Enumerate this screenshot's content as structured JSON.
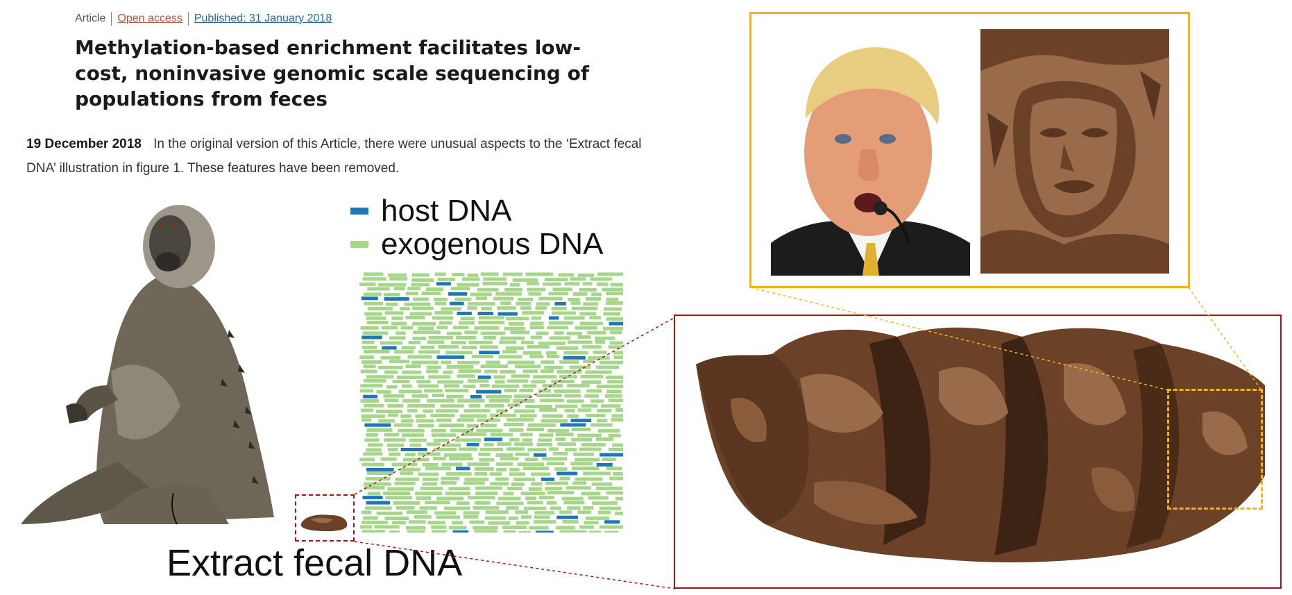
{
  "article_meta": {
    "type": "Article",
    "open_access": "Open access",
    "published": "Published: 31 January 2018"
  },
  "title": "Methylation-based enrichment facilitates low-cost, noninvasive genomic scale sequencing of populations from feces",
  "correction": {
    "date": "19 December 2018",
    "text": "In the original version of this Article, there were unusual aspects to the ‘Extract fecal DNA’ illustration in figure 1. These features have been removed."
  },
  "figure": {
    "legend": [
      {
        "label": "host DNA",
        "color": "#1f77b4"
      },
      {
        "label": "exogenous DNA",
        "color": "#a6d68a"
      }
    ],
    "caption": "Extract fecal DNA"
  },
  "colors": {
    "host": "#1f77b4",
    "exogenous": "#a6d68a",
    "zoom_red": "#a31616",
    "zoom_yellow": "#f2b418",
    "poop_dark": "#3d2313",
    "poop_mid": "#6b4127",
    "poop_light": "#9a6b4a"
  }
}
